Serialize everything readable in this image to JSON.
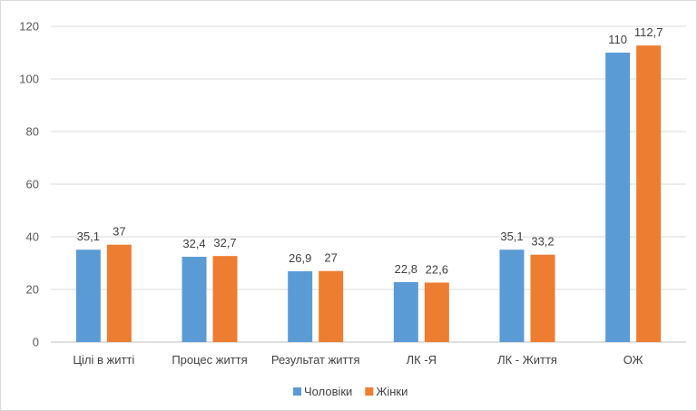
{
  "chart_data": {
    "type": "bar",
    "categories": [
      "Цілі в житті",
      "Процес життя",
      "Результат життя",
      "ЛК -Я",
      "ЛК - Життя",
      "ОЖ"
    ],
    "series": [
      {
        "name": "Чоловіки",
        "color": "#5B9BD5",
        "values": [
          35.1,
          32.4,
          26.9,
          22.8,
          35.1,
          110
        ],
        "labels": [
          "35,1",
          "32,4",
          "26,9",
          "22,8",
          "35,1",
          "110"
        ]
      },
      {
        "name": "Жінки",
        "color": "#ED7D31",
        "values": [
          37,
          32.7,
          27,
          22.6,
          33.2,
          112.7
        ],
        "labels": [
          "37",
          "32,7",
          "27",
          "22,6",
          "33,2",
          "112,7"
        ]
      }
    ],
    "ylim": [
      0,
      120
    ],
    "yticks": [
      0,
      20,
      40,
      60,
      80,
      100,
      120
    ],
    "grid": true,
    "legend": "bottom"
  }
}
